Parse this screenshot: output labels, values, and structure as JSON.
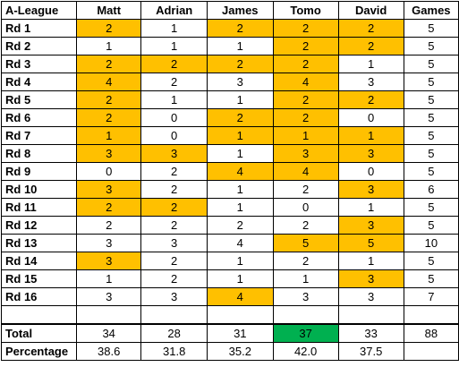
{
  "header": {
    "league": "A-League",
    "players": [
      "Matt",
      "Adrian",
      "James",
      "Tomo",
      "David"
    ],
    "games": "Games"
  },
  "rounds": [
    {
      "label": "Rd 1",
      "scores": [
        "2",
        "1",
        "2",
        "2",
        "2"
      ],
      "games": "5"
    },
    {
      "label": "Rd 2",
      "scores": [
        "1",
        "1",
        "1",
        "2",
        "2"
      ],
      "games": "5"
    },
    {
      "label": "Rd 3",
      "scores": [
        "2",
        "2",
        "2",
        "2",
        "1"
      ],
      "games": "5"
    },
    {
      "label": "Rd 4",
      "scores": [
        "4",
        "2",
        "3",
        "4",
        "3"
      ],
      "games": "5"
    },
    {
      "label": "Rd 5",
      "scores": [
        "2",
        "1",
        "1",
        "2",
        "2"
      ],
      "games": "5"
    },
    {
      "label": "Rd 6",
      "scores": [
        "2",
        "0",
        "2",
        "2",
        "0"
      ],
      "games": "5"
    },
    {
      "label": "Rd 7",
      "scores": [
        "1",
        "0",
        "1",
        "1",
        "1"
      ],
      "games": "5"
    },
    {
      "label": "Rd 8",
      "scores": [
        "3",
        "3",
        "1",
        "3",
        "3"
      ],
      "games": "5"
    },
    {
      "label": "Rd 9",
      "scores": [
        "0",
        "2",
        "4",
        "4",
        "0"
      ],
      "games": "5"
    },
    {
      "label": "Rd 10",
      "scores": [
        "3",
        "2",
        "1",
        "2",
        "3"
      ],
      "games": "6"
    },
    {
      "label": "Rd 11",
      "scores": [
        "2",
        "2",
        "1",
        "0",
        "1"
      ],
      "games": "5"
    },
    {
      "label": "Rd 12",
      "scores": [
        "2",
        "2",
        "2",
        "2",
        "3"
      ],
      "games": "5"
    },
    {
      "label": "Rd 13",
      "scores": [
        "3",
        "3",
        "4",
        "5",
        "5"
      ],
      "games": "10"
    },
    {
      "label": "Rd 14",
      "scores": [
        "3",
        "2",
        "1",
        "2",
        "1"
      ],
      "games": "5"
    },
    {
      "label": "Rd 15",
      "scores": [
        "1",
        "2",
        "1",
        "1",
        "3"
      ],
      "games": "5"
    },
    {
      "label": "Rd 16",
      "scores": [
        "3",
        "3",
        "4",
        "3",
        "3"
      ],
      "games": "7"
    }
  ],
  "total": {
    "label": "Total",
    "values": [
      "34",
      "28",
      "31",
      "37",
      "33"
    ],
    "games": "88"
  },
  "percentage": {
    "label": "Percentage",
    "values": [
      "38.6",
      "31.8",
      "35.2",
      "42.0",
      "37.5"
    ],
    "games": ""
  },
  "colors": {
    "round_winner": "#FFC000",
    "overall_leader": "#00B050",
    "background": "#FFFFFF"
  }
}
